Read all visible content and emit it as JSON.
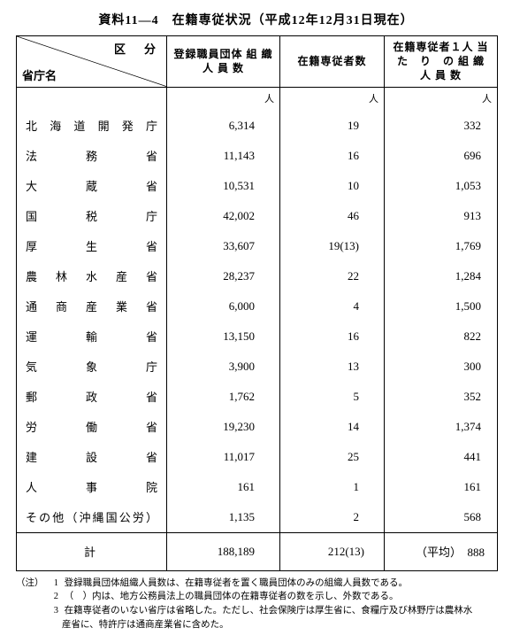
{
  "title": "資料11―4　在籍専従状況（平成12年12月31日現在）",
  "header": {
    "diag_top": "区　分",
    "diag_bottom": "省庁名",
    "col1": "登録職員団体\n組 織 人 員 数",
    "col2": "在籍専従者数",
    "col3": "在籍専従者１人\n当　た　り　の\n組 織 人 員 数",
    "unit": "人"
  },
  "rows": [
    {
      "name": "北 海 道 開 発 庁",
      "c1": "6,314",
      "c2": "19",
      "c3": "332"
    },
    {
      "name": "法　　務　　省",
      "c1": "11,143",
      "c2": "16",
      "c3": "696"
    },
    {
      "name": "大　　蔵　　省",
      "c1": "10,531",
      "c2": "10",
      "c3": "1,053"
    },
    {
      "name": "国　　税　　庁",
      "c1": "42,002",
      "c2": "46",
      "c3": "913"
    },
    {
      "name": "厚　　生　　省",
      "c1": "33,607",
      "c2": "19(13)",
      "c3": "1,769"
    },
    {
      "name": "農 林 水 産 省",
      "c1": "28,237",
      "c2": "22",
      "c3": "1,284"
    },
    {
      "name": "通 商 産 業 省",
      "c1": "6,000",
      "c2": "4",
      "c3": "1,500"
    },
    {
      "name": "運　　輸　　省",
      "c1": "13,150",
      "c2": "16",
      "c3": "822"
    },
    {
      "name": "気　　象　　庁",
      "c1": "3,900",
      "c2": "13",
      "c3": "300"
    },
    {
      "name": "郵　　政　　省",
      "c1": "1,762",
      "c2": "5",
      "c3": "352"
    },
    {
      "name": "労　　働　　省",
      "c1": "19,230",
      "c2": "14",
      "c3": "1,374"
    },
    {
      "name": "建　　設　　省",
      "c1": "11,017",
      "c2": "25",
      "c3": "441"
    },
    {
      "name": "人　　事　　院",
      "c1": "161",
      "c2": "1",
      "c3": "161"
    },
    {
      "name": "その他（沖縄国公労）",
      "c1": "1,135",
      "c2": "2",
      "c3": "568"
    }
  ],
  "total": {
    "name": "計",
    "c1": "188,189",
    "c2": "212(13)",
    "c3": "（平均）　888"
  },
  "notes": {
    "lead": "（注）",
    "items": [
      "登録職員団体組織人員数は、在籍専従者を置く職員団体のみの組織人員数である。",
      "（　）内は、地方公務員法上の職員団体の在籍専従者の数を示し、外数である。",
      "在籍専従者のいない省庁は省略した。ただし、社会保険庁は厚生省に、食糧庁及び林野庁は農林水産省に、特許庁は通商産業省に含めた。"
    ]
  }
}
